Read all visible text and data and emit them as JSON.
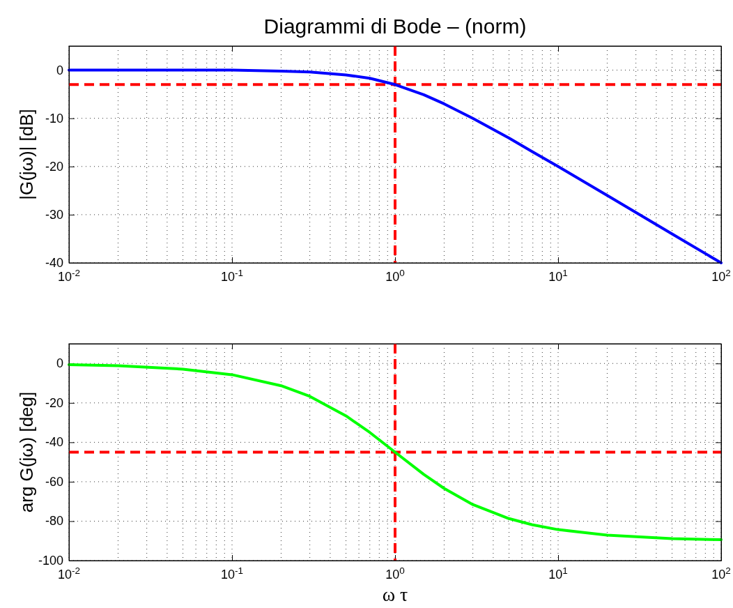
{
  "chart_data": [
    {
      "type": "line",
      "title": "Diagrammi di Bode – (norm)",
      "ylabel": "|G(jω)| [dB]",
      "log": "x",
      "grid": true,
      "line_style": "solid",
      "marker": "none",
      "x": [
        0.01,
        0.02,
        0.05,
        0.1,
        0.2,
        0.3,
        0.5,
        0.7,
        1,
        1.5,
        2,
        3,
        5,
        7,
        10,
        20,
        50,
        100
      ],
      "series": [
        {
          "color": "#0000ff",
          "values": [
            0,
            0,
            0,
            0,
            -0.2,
            -0.4,
            -1,
            -1.7,
            -3,
            -5.1,
            -7,
            -10,
            -14.1,
            -17,
            -20,
            -26,
            -34,
            -40
          ]
        }
      ],
      "xlim": [
        0.01,
        100
      ],
      "ylim": [
        -40,
        5
      ],
      "xticks": [
        {
          "value": 0.01,
          "label": "10$^{-2}$"
        },
        {
          "value": 0.1,
          "label": "10$^{-1}$"
        },
        {
          "value": 1,
          "label": "10$^{0}$"
        },
        {
          "value": 10,
          "label": "10$^{1}$"
        },
        {
          "value": 100,
          "label": "10$^{2}$"
        }
      ],
      "yticks": [
        -40,
        -30,
        -20,
        -10,
        0
      ],
      "ref_lines": [
        {
          "axis": "y",
          "value": -3,
          "color": "#ff0000",
          "line_style": "dashed"
        },
        {
          "axis": "x",
          "value": 1,
          "color": "#ff0000",
          "line_style": "dashed"
        }
      ]
    },
    {
      "type": "line",
      "xlabel": "ω τ",
      "ylabel": "arg G(jω) [deg]",
      "log": "x",
      "grid": true,
      "line_style": "solid",
      "marker": "none",
      "x": [
        0.01,
        0.02,
        0.05,
        0.1,
        0.2,
        0.3,
        0.5,
        0.7,
        1,
        1.5,
        2,
        3,
        5,
        7,
        10,
        20,
        50,
        100
      ],
      "series": [
        {
          "color": "#00ff00",
          "values": [
            -0.6,
            -1.1,
            -2.9,
            -5.7,
            -11.3,
            -16.7,
            -26.6,
            -35,
            -45,
            -56.3,
            -63.4,
            -71.6,
            -78.7,
            -81.9,
            -84.3,
            -87.1,
            -88.9,
            -89.4
          ]
        }
      ],
      "xlim": [
        0.01,
        100
      ],
      "ylim": [
        -100,
        10
      ],
      "xticks": [
        {
          "value": 0.01,
          "label": "10$^{-2}$"
        },
        {
          "value": 0.1,
          "label": "10$^{-1}$"
        },
        {
          "value": 1,
          "label": "10$^{0}$"
        },
        {
          "value": 10,
          "label": "10$^{1}$"
        },
        {
          "value": 100,
          "label": "10$^{2}$"
        }
      ],
      "yticks": [
        -100,
        -80,
        -60,
        -40,
        -20,
        0
      ],
      "ref_lines": [
        {
          "axis": "y",
          "value": -45,
          "color": "#ff0000",
          "line_style": "dashed"
        },
        {
          "axis": "x",
          "value": 1,
          "color": "#ff0000",
          "line_style": "dashed"
        }
      ]
    }
  ]
}
